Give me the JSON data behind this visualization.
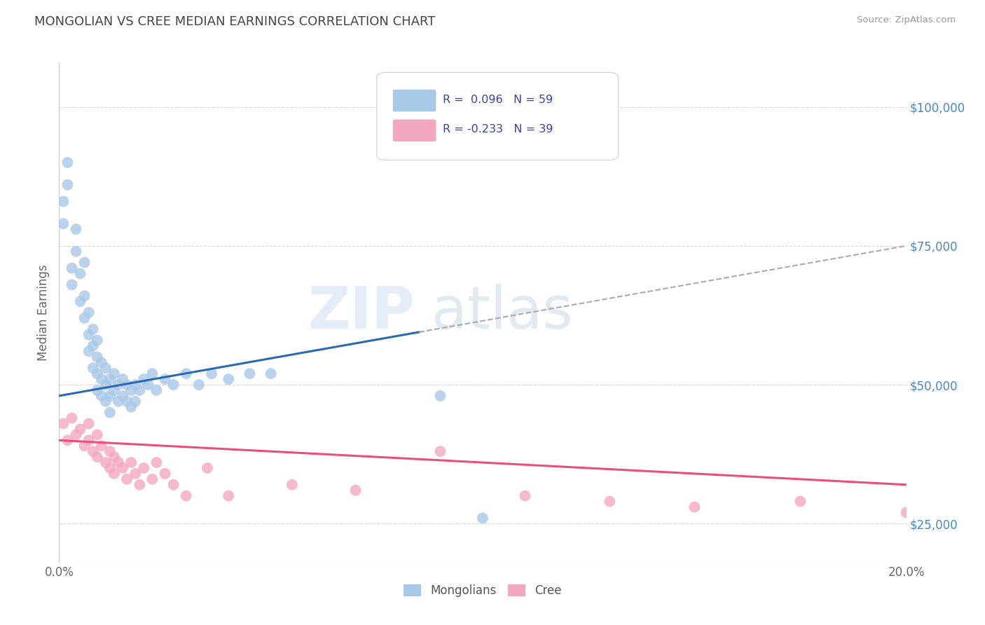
{
  "title": "MONGOLIAN VS CREE MEDIAN EARNINGS CORRELATION CHART",
  "source": "Source: ZipAtlas.com",
  "ylabel": "Median Earnings",
  "xlim": [
    0.0,
    0.2
  ],
  "ylim": [
    18000,
    108000
  ],
  "xticks": [
    0.0,
    0.05,
    0.1,
    0.15,
    0.2
  ],
  "xticklabels": [
    "0.0%",
    "",
    "",
    "",
    "20.0%"
  ],
  "ytick_positions": [
    25000,
    50000,
    75000,
    100000
  ],
  "ytick_labels": [
    "$25,000",
    "$50,000",
    "$75,000",
    "$100,000"
  ],
  "legend_labels": [
    "Mongolians",
    "Cree"
  ],
  "mongolian_color": "#a8c8e8",
  "cree_color": "#f4a8c0",
  "mongolian_line_color": "#2a6aaf",
  "cree_line_color": "#e8507a",
  "dash_color": "#aaaaaa",
  "mongolian_R": 0.096,
  "mongolian_N": 59,
  "cree_R": -0.233,
  "cree_N": 39,
  "background_color": "#ffffff",
  "grid_color": "#d0d8ea",
  "mongolian_x": [
    0.001,
    0.001,
    0.002,
    0.002,
    0.003,
    0.003,
    0.004,
    0.004,
    0.005,
    0.005,
    0.006,
    0.006,
    0.006,
    0.007,
    0.007,
    0.007,
    0.008,
    0.008,
    0.008,
    0.009,
    0.009,
    0.009,
    0.009,
    0.01,
    0.01,
    0.01,
    0.011,
    0.011,
    0.011,
    0.012,
    0.012,
    0.012,
    0.013,
    0.013,
    0.014,
    0.014,
    0.015,
    0.015,
    0.016,
    0.016,
    0.017,
    0.017,
    0.018,
    0.018,
    0.019,
    0.02,
    0.021,
    0.022,
    0.023,
    0.025,
    0.027,
    0.03,
    0.033,
    0.036,
    0.04,
    0.045,
    0.05,
    0.09,
    0.1
  ],
  "mongolian_y": [
    83000,
    79000,
    86000,
    90000,
    71000,
    68000,
    74000,
    78000,
    65000,
    70000,
    62000,
    66000,
    72000,
    63000,
    59000,
    56000,
    60000,
    57000,
    53000,
    58000,
    55000,
    52000,
    49000,
    54000,
    51000,
    48000,
    53000,
    50000,
    47000,
    51000,
    48000,
    45000,
    52000,
    49000,
    50000,
    47000,
    51000,
    48000,
    50000,
    47000,
    49000,
    46000,
    50000,
    47000,
    49000,
    51000,
    50000,
    52000,
    49000,
    51000,
    50000,
    52000,
    50000,
    52000,
    51000,
    52000,
    52000,
    48000,
    26000
  ],
  "cree_x": [
    0.001,
    0.002,
    0.003,
    0.004,
    0.005,
    0.006,
    0.007,
    0.007,
    0.008,
    0.009,
    0.009,
    0.01,
    0.011,
    0.012,
    0.012,
    0.013,
    0.013,
    0.014,
    0.015,
    0.016,
    0.017,
    0.018,
    0.019,
    0.02,
    0.022,
    0.023,
    0.025,
    0.027,
    0.03,
    0.035,
    0.04,
    0.055,
    0.07,
    0.09,
    0.11,
    0.13,
    0.15,
    0.175,
    0.2
  ],
  "cree_y": [
    43000,
    40000,
    44000,
    41000,
    42000,
    39000,
    43000,
    40000,
    38000,
    41000,
    37000,
    39000,
    36000,
    38000,
    35000,
    37000,
    34000,
    36000,
    35000,
    33000,
    36000,
    34000,
    32000,
    35000,
    33000,
    36000,
    34000,
    32000,
    30000,
    35000,
    30000,
    32000,
    31000,
    38000,
    30000,
    29000,
    28000,
    29000,
    27000
  ],
  "solid_line_end": 0.085,
  "watermark_zip_color": "#dce8f5",
  "watermark_atlas_color": "#c8d8e8"
}
